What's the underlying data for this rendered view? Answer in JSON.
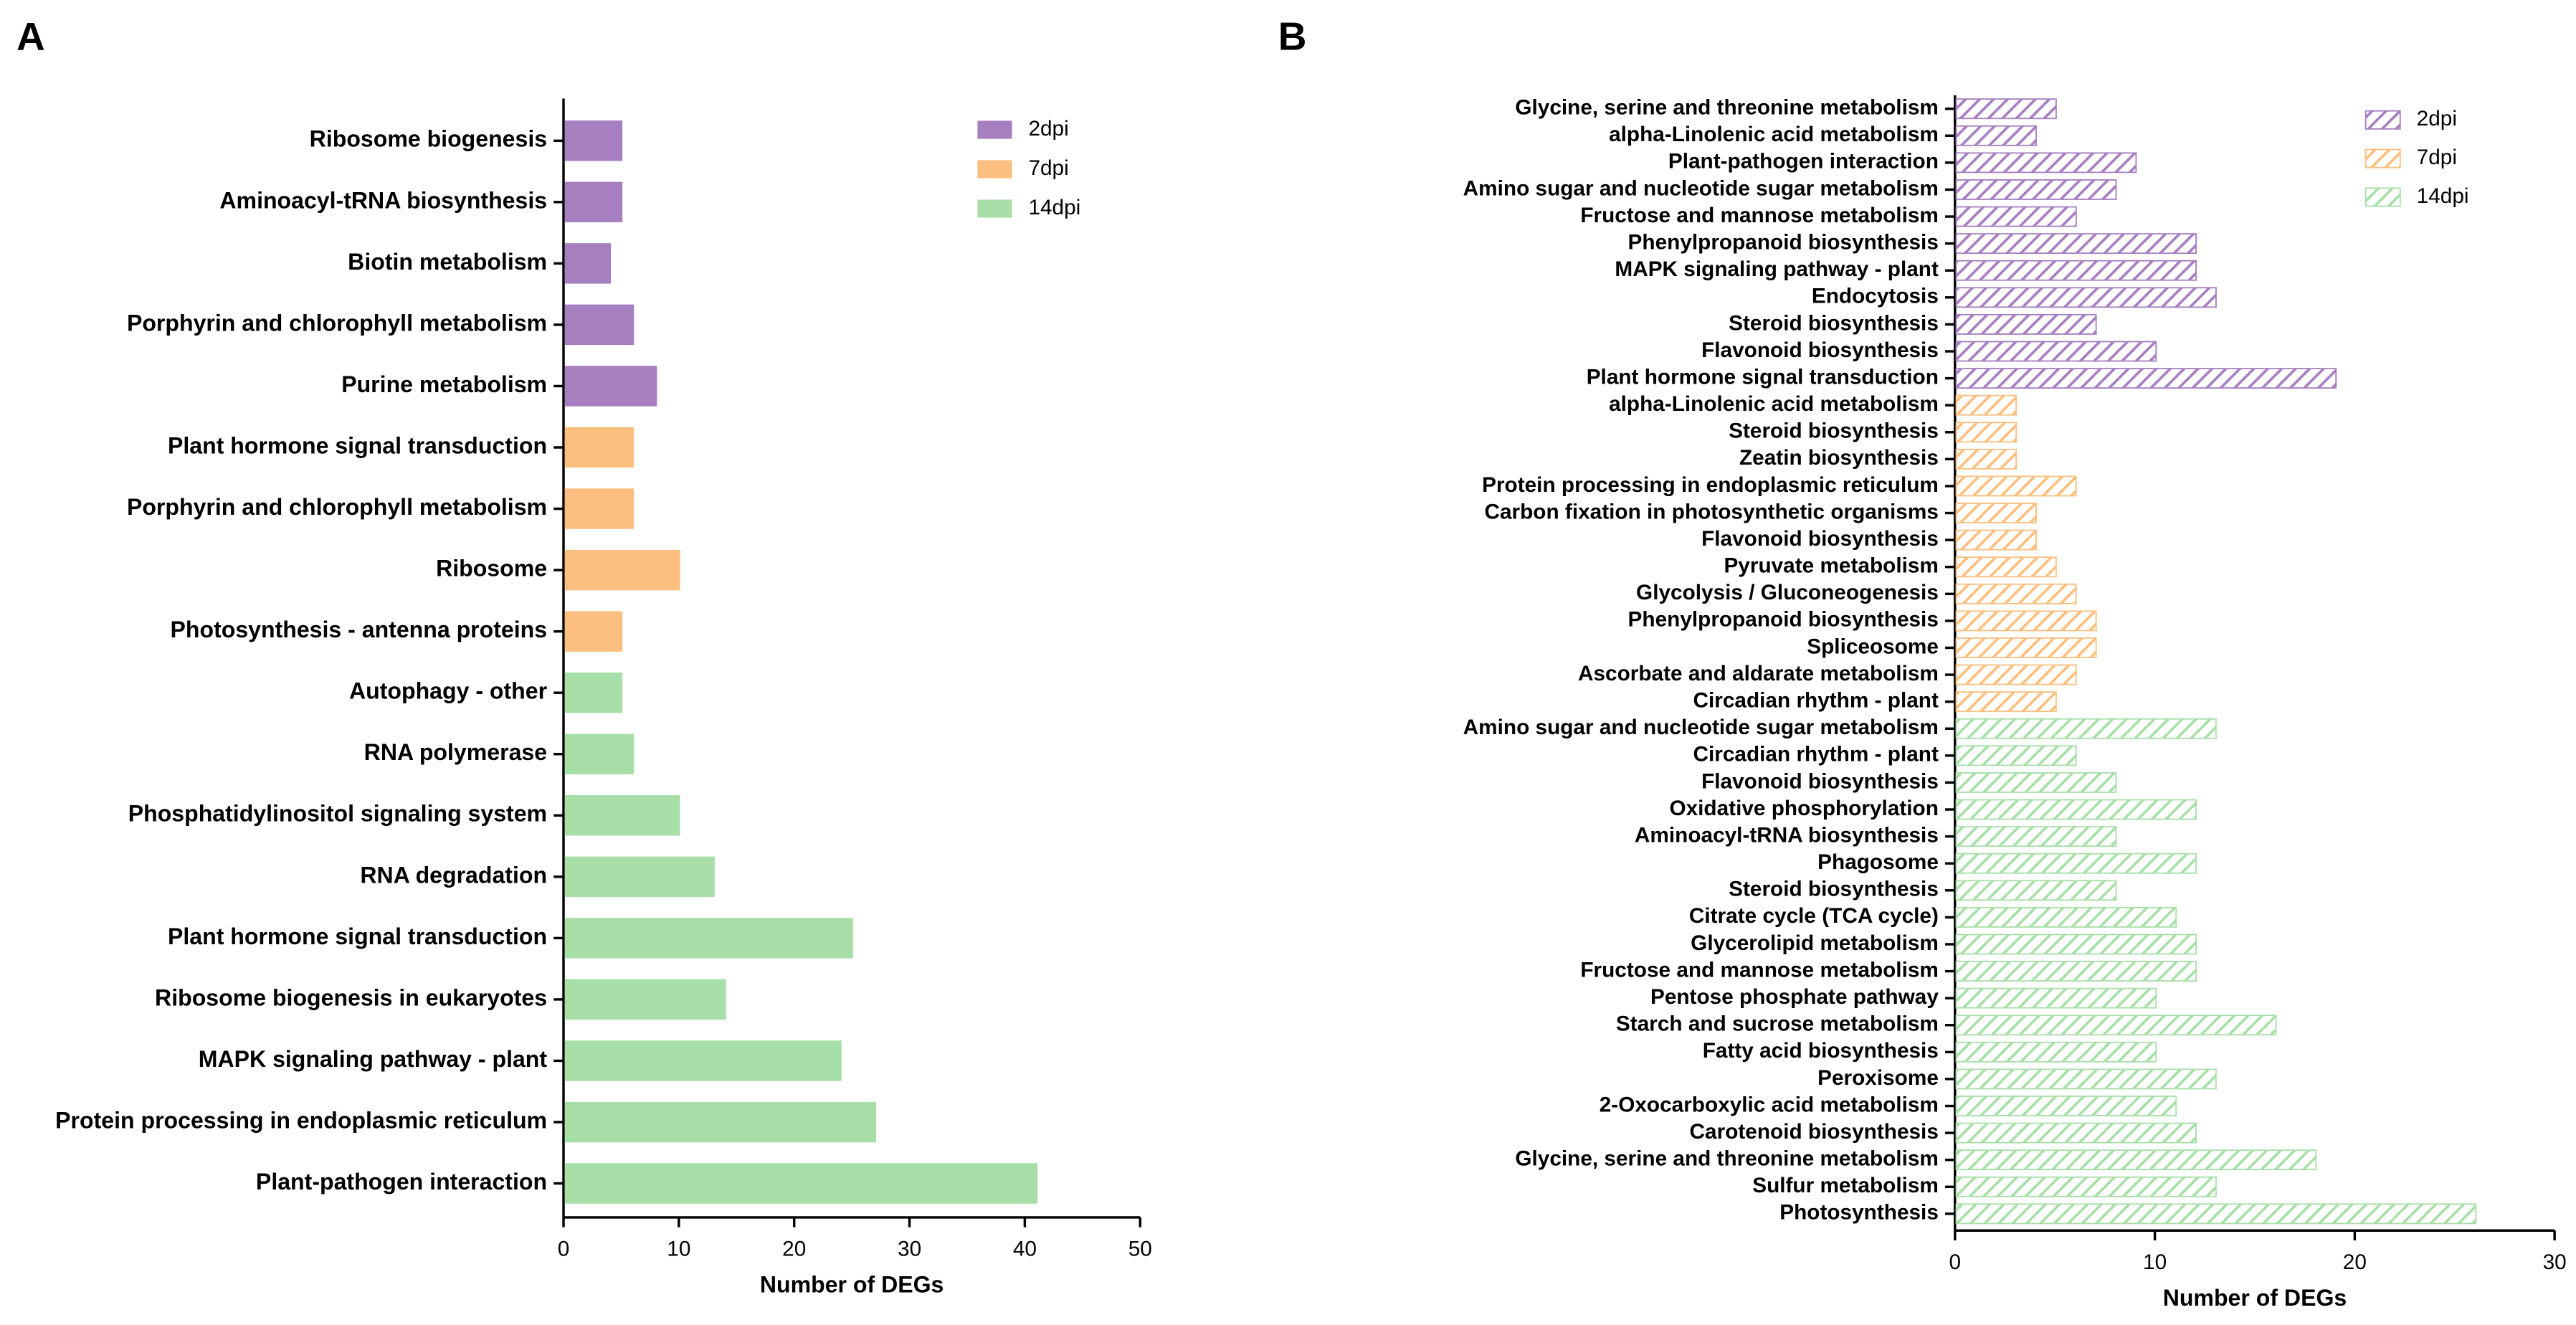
{
  "chart_data": [
    {
      "type": "barh",
      "panel_label": "A",
      "x_label": "Number of DEGs",
      "categories": [
        "Ribosome biogenesis",
        "Aminoacyl-tRNA biosynthesis",
        "Biotin metabolism",
        "Porphyrin and chlorophyll metabolism",
        "Purine metabolism",
        "Plant hormone signal transduction",
        "Porphyrin and chlorophyll metabolism",
        "Ribosome",
        "Photosynthesis - antenna proteins",
        "Autophagy - other",
        "RNA polymerase",
        "Phosphatidylinositol signaling system",
        "RNA degradation",
        "Plant hormone signal transduction",
        "Ribosome biogenesis in eukaryotes",
        "MAPK signaling pathway - plant",
        "Protein processing in endoplasmic reticulum",
        "Plant-pathogen interaction"
      ],
      "series": [
        {
          "name": "2dpi",
          "color": "#a67fc0",
          "values": [
            5,
            5,
            4,
            6,
            8,
            null,
            null,
            null,
            null,
            null,
            null,
            null,
            null,
            null,
            null,
            null,
            null,
            null
          ]
        },
        {
          "name": "7dpi",
          "color": "#fdbf7f",
          "values": [
            null,
            null,
            null,
            null,
            null,
            6,
            6,
            10,
            5,
            null,
            null,
            null,
            null,
            null,
            null,
            null,
            null,
            null
          ]
        },
        {
          "name": "14dpi",
          "color": "#a8dfa8",
          "values": [
            null,
            null,
            null,
            null,
            null,
            null,
            null,
            null,
            null,
            5,
            6,
            10,
            13,
            25,
            14,
            24,
            27,
            41
          ]
        }
      ],
      "xlim": [
        0,
        50
      ],
      "xticks": [
        0,
        10,
        20,
        30,
        40,
        50
      ],
      "hatch": false
    },
    {
      "type": "barh",
      "panel_label": "B",
      "x_label": "Number of DEGs",
      "categories": [
        "Glycine, serine and threonine metabolism",
        "alpha-Linolenic acid metabolism",
        "Plant-pathogen interaction",
        "Amino sugar and nucleotide sugar metabolism",
        "Fructose and mannose metabolism",
        "Phenylpropanoid biosynthesis",
        "MAPK signaling pathway - plant",
        "Endocytosis",
        "Steroid biosynthesis",
        "Flavonoid biosynthesis",
        "Plant hormone signal transduction",
        "alpha-Linolenic acid metabolism",
        "Steroid biosynthesis",
        "Zeatin biosynthesis",
        "Protein processing in endoplasmic reticulum",
        "Carbon fixation in photosynthetic organisms",
        "Flavonoid biosynthesis",
        "Pyruvate metabolism",
        "Glycolysis / Gluconeogenesis",
        "Phenylpropanoid biosynthesis",
        "Spliceosome",
        "Ascorbate and aldarate metabolism",
        "Circadian rhythm - plant",
        "Amino sugar and nucleotide sugar metabolism",
        "Circadian rhythm - plant",
        "Flavonoid biosynthesis",
        "Oxidative phosphorylation",
        "Aminoacyl-tRNA biosynthesis",
        "Phagosome",
        "Steroid biosynthesis",
        "Citrate cycle (TCA cycle)",
        "Glycerolipid metabolism",
        "Fructose and mannose metabolism",
        "Pentose phosphate pathway",
        "Starch and sucrose metabolism",
        "Fatty acid biosynthesis",
        "Peroxisome",
        "2-Oxocarboxylic acid metabolism",
        "Carotenoid biosynthesis",
        "Glycine, serine and threonine metabolism",
        "Sulfur metabolism",
        "Photosynthesis"
      ],
      "series": [
        {
          "name": "2dpi",
          "color": "#a67fc0",
          "values": [
            5,
            4,
            9,
            8,
            6,
            12,
            12,
            13,
            7,
            10,
            19,
            null,
            null,
            null,
            null,
            null,
            null,
            null,
            null,
            null,
            null,
            null,
            null,
            null,
            null,
            null,
            null,
            null,
            null,
            null,
            null,
            null,
            null,
            null,
            null,
            null,
            null,
            null,
            null,
            null,
            null,
            null
          ]
        },
        {
          "name": "7dpi",
          "color": "#fdbf7f",
          "values": [
            null,
            null,
            null,
            null,
            null,
            null,
            null,
            null,
            null,
            null,
            null,
            3,
            3,
            3,
            6,
            4,
            4,
            5,
            6,
            7,
            7,
            6,
            5,
            null,
            null,
            null,
            null,
            null,
            null,
            null,
            null,
            null,
            null,
            null,
            null,
            null,
            null,
            null,
            null,
            null,
            null,
            null
          ]
        },
        {
          "name": "14dpi",
          "color": "#a8dfa8",
          "values": [
            null,
            null,
            null,
            null,
            null,
            null,
            null,
            null,
            null,
            null,
            null,
            null,
            null,
            null,
            null,
            null,
            null,
            null,
            null,
            null,
            null,
            null,
            null,
            13,
            6,
            8,
            12,
            8,
            12,
            8,
            11,
            12,
            12,
            10,
            16,
            10,
            13,
            11,
            12,
            18,
            13,
            26
          ]
        }
      ],
      "xlim": [
        0,
        30
      ],
      "xticks": [
        0,
        10,
        20,
        30
      ],
      "hatch": true
    }
  ]
}
